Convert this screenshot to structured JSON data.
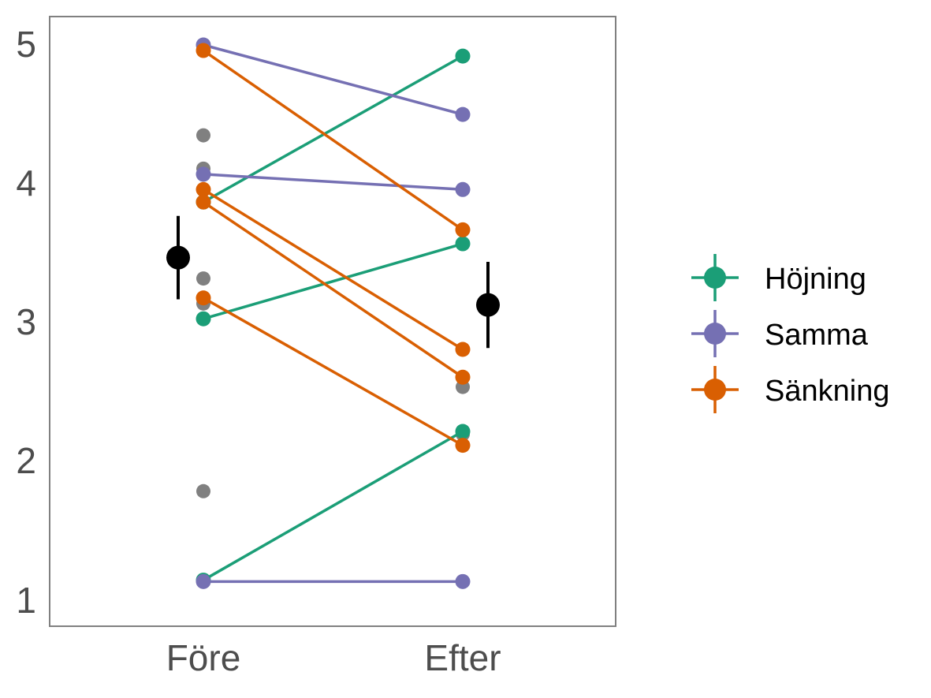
{
  "chart_data": {
    "type": "line",
    "categories": [
      "Före",
      "Efter"
    ],
    "y_ticks": [
      "1",
      "2",
      "3",
      "4",
      "5"
    ],
    "ylim": [
      0.85,
      5.2
    ],
    "grid": false,
    "legend_placement": "right",
    "legend": [
      {
        "label": "Höjning",
        "color": "#1b9e77"
      },
      {
        "label": "Samma",
        "color": "#7570b3"
      },
      {
        "label": "Sänkning",
        "color": "#d95f02"
      }
    ],
    "pairs": [
      {
        "group": "Höjning",
        "before": 3.87,
        "after": 4.92
      },
      {
        "group": "Höjning",
        "before": 3.03,
        "after": 3.57
      },
      {
        "group": "Höjning",
        "before": 1.15,
        "after": 2.22
      },
      {
        "group": "Samma",
        "before": 5.0,
        "after": 4.5
      },
      {
        "group": "Samma",
        "before": 4.07,
        "after": 3.96
      },
      {
        "group": "Samma",
        "before": 1.14,
        "after": 1.14
      },
      {
        "group": "Sänkning",
        "before": 4.96,
        "after": 3.67
      },
      {
        "group": "Sänkning",
        "before": 3.96,
        "after": 2.81
      },
      {
        "group": "Sänkning",
        "before": 3.87,
        "after": 2.61
      },
      {
        "group": "Sänkning",
        "before": 3.18,
        "after": 2.12
      }
    ],
    "unpaired": [
      {
        "x": "Före",
        "y": 4.35
      },
      {
        "x": "Före",
        "y": 4.11
      },
      {
        "x": "Före",
        "y": 3.32
      },
      {
        "x": "Före",
        "y": 3.14
      },
      {
        "x": "Före",
        "y": 1.79
      },
      {
        "x": "Efter",
        "y": 2.54
      },
      {
        "x": "Efter",
        "y": 2.2
      }
    ],
    "unpaired_color": "#808080",
    "summary": [
      {
        "x": "Före",
        "mean": 3.47,
        "lower": 3.17,
        "upper": 3.77
      },
      {
        "x": "Efter",
        "mean": 3.13,
        "lower": 2.82,
        "upper": 3.44
      }
    ],
    "summary_color": "#000000"
  }
}
